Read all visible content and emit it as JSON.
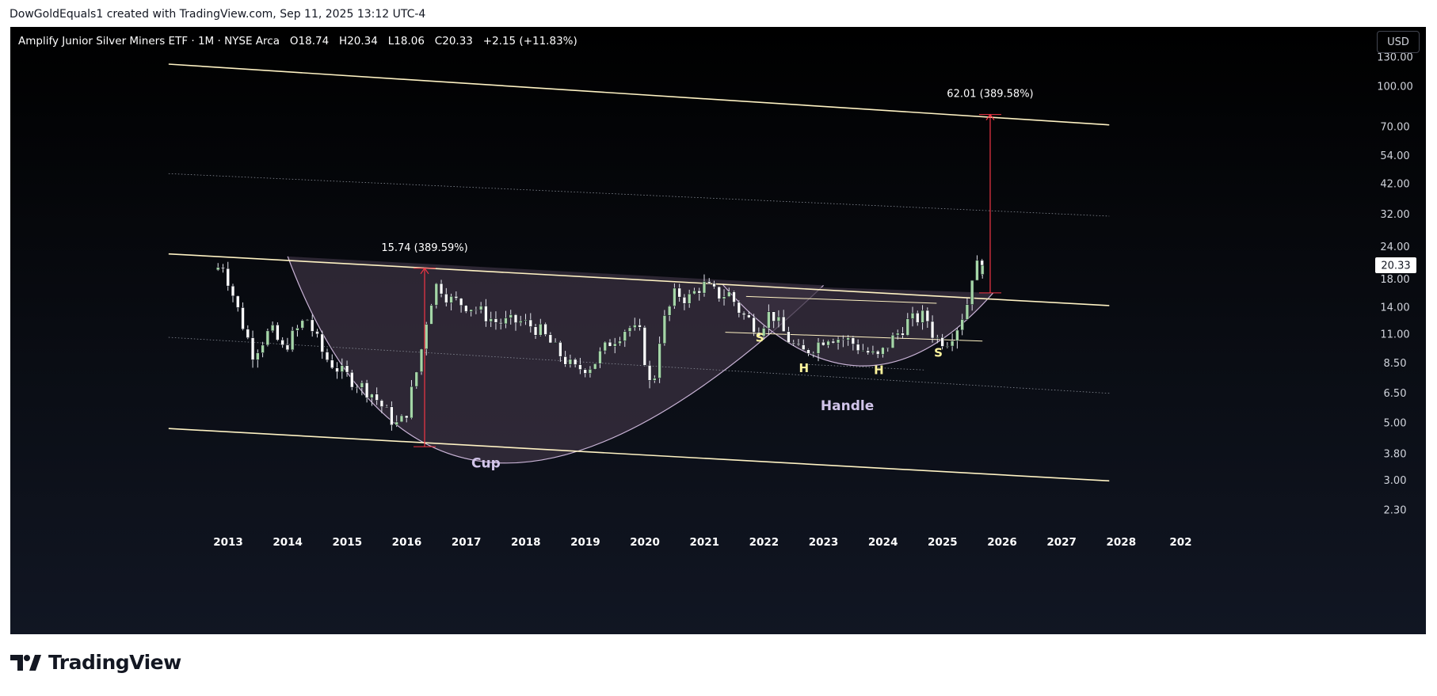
{
  "caption": "DowGoldEquals1 created with TradingView.com, Sep 11, 2025 13:12 UTC-4",
  "legend": {
    "symbol": "Amplify Junior Silver Miners ETF · 1M · NYSE Arca",
    "open_label": "O",
    "open": "18.74",
    "high_label": "H",
    "high": "20.34",
    "low_label": "L",
    "low": "18.06",
    "close_label": "C",
    "close": "20.33",
    "change": "+2.15 (+11.83%)"
  },
  "currency": "USD",
  "brand": {
    "name": "TradingView",
    "logo_icon": "tradingview-logo-icon"
  },
  "colors": {
    "up_candle": "#a5d6a7",
    "down_candle": "#ffffff",
    "trendline": "#fff3c4",
    "measure": "#f23645",
    "pattern_fill": "#3a3040",
    "pattern_stroke": "#c9b3d6",
    "annotation": "#fff59d",
    "label": "#d1c4e9"
  },
  "chart_data": {
    "type": "candlestick",
    "title": "",
    "yscale": "log",
    "ylim": [
      2.0,
      150
    ],
    "xlim": [
      2012.0,
      2029.0
    ],
    "y_ticks": [
      "130.00",
      "100.00",
      "70.00",
      "54.00",
      "42.00",
      "32.00",
      "24.00",
      "18.00",
      "14.00",
      "11.00",
      "8.50",
      "6.50",
      "5.00",
      "3.80",
      "3.00",
      "2.30"
    ],
    "x_ticks": [
      "2013",
      "2014",
      "2015",
      "2016",
      "2017",
      "2018",
      "2019",
      "2020",
      "2021",
      "2022",
      "2023",
      "2024",
      "2025",
      "2026",
      "2027",
      "2028",
      "202"
    ],
    "last_price": "20.33",
    "keypoints": [
      {
        "t": 2012.83,
        "p": 19.5
      },
      {
        "t": 2013.0,
        "p": 20.5
      },
      {
        "t": 2013.3,
        "p": 12.5
      },
      {
        "t": 2013.5,
        "p": 9.3
      },
      {
        "t": 2013.8,
        "p": 11.5
      },
      {
        "t": 2014.0,
        "p": 9.6
      },
      {
        "t": 2014.4,
        "p": 12.8
      },
      {
        "t": 2014.7,
        "p": 9.0
      },
      {
        "t": 2015.0,
        "p": 7.8
      },
      {
        "t": 2015.5,
        "p": 6.5
      },
      {
        "t": 2015.9,
        "p": 4.9
      },
      {
        "t": 2016.05,
        "p": 5.2
      },
      {
        "t": 2016.3,
        "p": 8.8
      },
      {
        "t": 2016.45,
        "p": 14.0
      },
      {
        "t": 2016.6,
        "p": 17.5
      },
      {
        "t": 2016.8,
        "p": 15.0
      },
      {
        "t": 2017.2,
        "p": 14.0
      },
      {
        "t": 2017.6,
        "p": 12.2
      },
      {
        "t": 2018.0,
        "p": 12.3
      },
      {
        "t": 2018.3,
        "p": 11.5
      },
      {
        "t": 2018.6,
        "p": 9.5
      },
      {
        "t": 2018.9,
        "p": 8.0
      },
      {
        "t": 2019.2,
        "p": 8.4
      },
      {
        "t": 2019.5,
        "p": 10.3
      },
      {
        "t": 2019.8,
        "p": 11.8
      },
      {
        "t": 2020.0,
        "p": 11.0
      },
      {
        "t": 2020.2,
        "p": 6.4
      },
      {
        "t": 2020.35,
        "p": 11.5
      },
      {
        "t": 2020.6,
        "p": 16.0
      },
      {
        "t": 2020.8,
        "p": 15.0
      },
      {
        "t": 2021.05,
        "p": 17.2
      },
      {
        "t": 2021.3,
        "p": 15.6
      },
      {
        "t": 2021.5,
        "p": 15.8
      },
      {
        "t": 2021.7,
        "p": 13.2
      },
      {
        "t": 2022.0,
        "p": 11.6
      },
      {
        "t": 2022.2,
        "p": 13.5
      },
      {
        "t": 2022.45,
        "p": 10.8
      },
      {
        "t": 2022.7,
        "p": 9.2
      },
      {
        "t": 2022.95,
        "p": 10.0
      },
      {
        "t": 2023.15,
        "p": 10.9
      },
      {
        "t": 2023.5,
        "p": 10.4
      },
      {
        "t": 2023.8,
        "p": 9.4
      },
      {
        "t": 2024.0,
        "p": 8.9
      },
      {
        "t": 2024.2,
        "p": 10.3
      },
      {
        "t": 2024.5,
        "p": 12.3
      },
      {
        "t": 2024.8,
        "p": 13.0
      },
      {
        "t": 2024.95,
        "p": 10.6
      },
      {
        "t": 2025.15,
        "p": 10.4
      },
      {
        "t": 2025.35,
        "p": 12.0
      },
      {
        "t": 2025.5,
        "p": 14.6
      },
      {
        "t": 2025.58,
        "p": 18.74
      },
      {
        "t": 2025.67,
        "p": 20.33
      }
    ],
    "last_candle": {
      "t": 2025.67,
      "open": 18.74,
      "high": 20.34,
      "low": 18.06,
      "close": 20.33
    },
    "trendlines": [
      {
        "name": "upper-channel",
        "t1": 2012.0,
        "p1": 122,
        "t2": 2027.8,
        "p2": 71
      },
      {
        "name": "middle-channel",
        "t1": 2012.0,
        "p1": 22.5,
        "t2": 2027.8,
        "p2": 14.2
      },
      {
        "name": "lower-channel",
        "t1": 2012.0,
        "p1": 4.75,
        "t2": 2027.8,
        "p2": 2.98
      }
    ],
    "dotted_lines": [
      {
        "t1": 2012.0,
        "p1": 46,
        "t2": 2027.8,
        "p2": 31.5
      },
      {
        "t1": 2012.0,
        "p1": 10.7,
        "t2": 2027.8,
        "p2": 6.5
      },
      {
        "t1": 2022.75,
        "p1": 8.4,
        "t2": 2024.7,
        "p2": 8.0
      }
    ],
    "handle_lines": [
      {
        "t1": 2021.7,
        "p1": 15.4,
        "t2": 2024.9,
        "p2": 14.5
      },
      {
        "t1": 2021.35,
        "p1": 11.2,
        "t2": 2025.67,
        "p2": 10.35
      }
    ],
    "measures": [
      {
        "label": "15.74 (389.59%)",
        "t": 2016.3,
        "from": 4.04,
        "to": 19.8
      },
      {
        "label": "62.01 (389.58%)",
        "t": 2025.8,
        "from": 15.9,
        "to": 77.9
      }
    ],
    "cup": {
      "label": "Cup",
      "start": {
        "t": 2014.0,
        "p": 22.0
      },
      "bottom": {
        "t": 2017.5,
        "p": 3.5
      },
      "end": {
        "t": 2023.0,
        "p": 17.0
      }
    },
    "handle": {
      "label": "Handle",
      "start": {
        "t": 2021.3,
        "p": 17.2
      },
      "bottom": {
        "t": 2023.6,
        "p": 8.3
      },
      "end": {
        "t": 2025.85,
        "p": 15.9
      }
    },
    "markers": [
      {
        "label": "S",
        "t": 2021.93,
        "p": 10.3
      },
      {
        "label": "H",
        "t": 2022.67,
        "p": 7.85
      },
      {
        "label": "H",
        "t": 2023.93,
        "p": 7.7
      },
      {
        "label": "S",
        "t": 2024.93,
        "p": 9.0
      }
    ],
    "label_positions": {
      "cup_label": {
        "t": 2017.33,
        "p": 3.35
      },
      "handle_label": {
        "t": 2023.4,
        "p": 5.6
      }
    }
  }
}
